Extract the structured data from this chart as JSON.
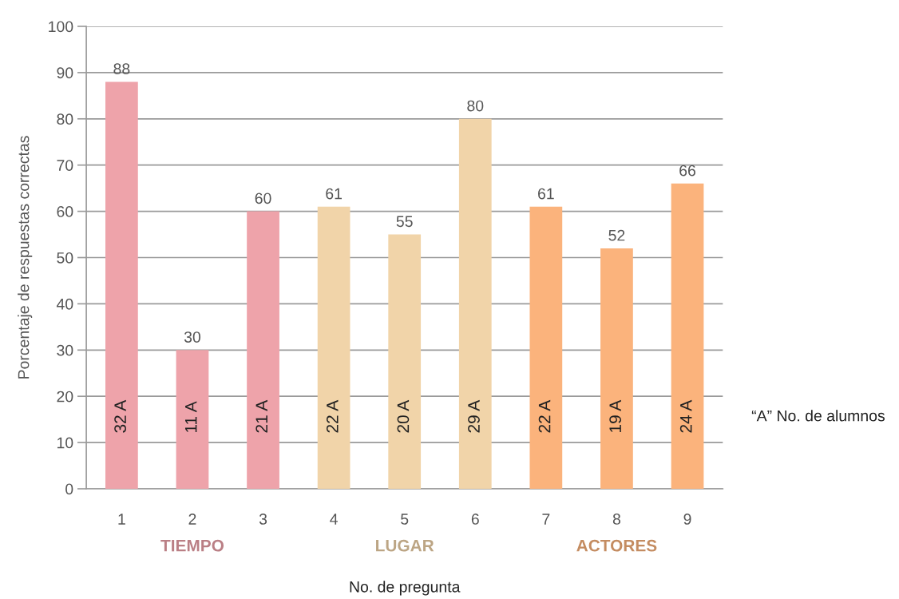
{
  "chart_data": {
    "type": "bar",
    "xlabel": "No. de pregunta",
    "ylabel": "Porcentaje de respuestas correctas",
    "categories": [
      "1",
      "2",
      "3",
      "4",
      "5",
      "6",
      "7",
      "8",
      "9"
    ],
    "values": [
      88,
      30,
      60,
      61,
      55,
      80,
      61,
      52,
      66
    ],
    "colors": [
      "#eea3aa",
      "#eea3aa",
      "#eea3aa",
      "#f1d4a9",
      "#f1d4a9",
      "#f1d4a9",
      "#fbb37c",
      "#fbb37c",
      "#fbb37c"
    ],
    "ylim": [
      0,
      100
    ],
    "yticks": [
      0,
      10,
      20,
      30,
      40,
      50,
      60,
      70,
      80,
      90,
      100
    ],
    "grid": "y",
    "data_labels": true,
    "annotations": [
      "32 A",
      "11 A",
      "21 A",
      "22 A",
      "20 A",
      "29 A",
      "22 A",
      "19 A",
      "24 A",
      "TIEMPO",
      "LUGAR",
      "ACTORES",
      "“A” No. de alumnos"
    ]
  }
}
